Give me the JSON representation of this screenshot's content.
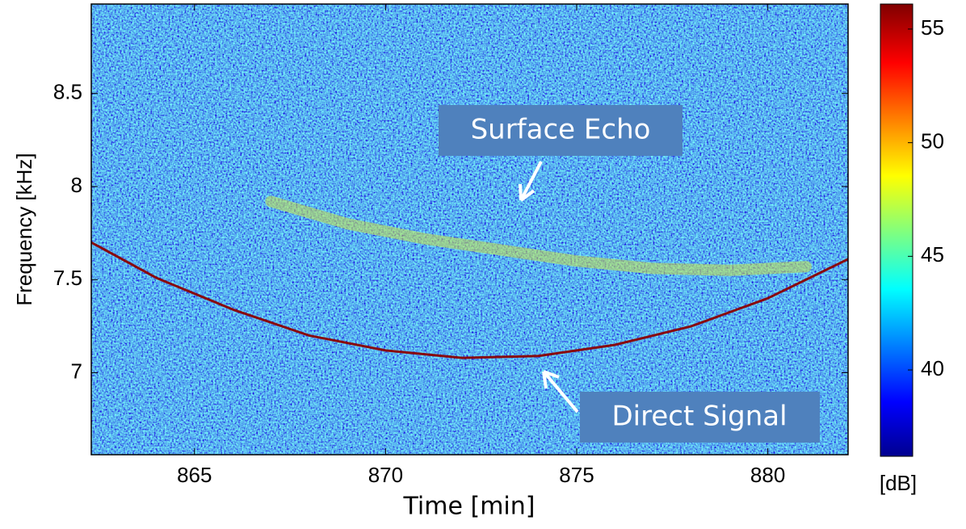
{
  "chart_data": {
    "type": "spectrogram",
    "xlabel": "Time [min]",
    "ylabel": "Frequency [kHz]",
    "xlim": [
      862.3,
      882.1
    ],
    "xticks": [
      865,
      870,
      875,
      880
    ],
    "ylim": [
      6.56,
      8.98
    ],
    "yticks": [
      7,
      7.5,
      8,
      8.5
    ],
    "series": [
      {
        "name": "Direct Signal",
        "color": "#8b0000",
        "x": [
          862.3,
          864,
          866,
          868,
          870,
          872,
          874,
          876,
          878,
          880,
          882.1
        ],
        "values": [
          7.7,
          7.51,
          7.34,
          7.2,
          7.12,
          7.08,
          7.09,
          7.15,
          7.25,
          7.4,
          7.61
        ]
      },
      {
        "name": "Surface Echo",
        "color": "#c8e04a",
        "x": [
          867,
          869,
          871,
          873,
          875,
          877,
          879,
          881
        ],
        "values": [
          7.92,
          7.8,
          7.72,
          7.66,
          7.6,
          7.56,
          7.55,
          7.57
        ]
      }
    ],
    "colorbar": {
      "label": "[dB]",
      "clim": [
        36.2,
        56.1
      ],
      "ticks": [
        40,
        45,
        50,
        55
      ]
    }
  }
}
